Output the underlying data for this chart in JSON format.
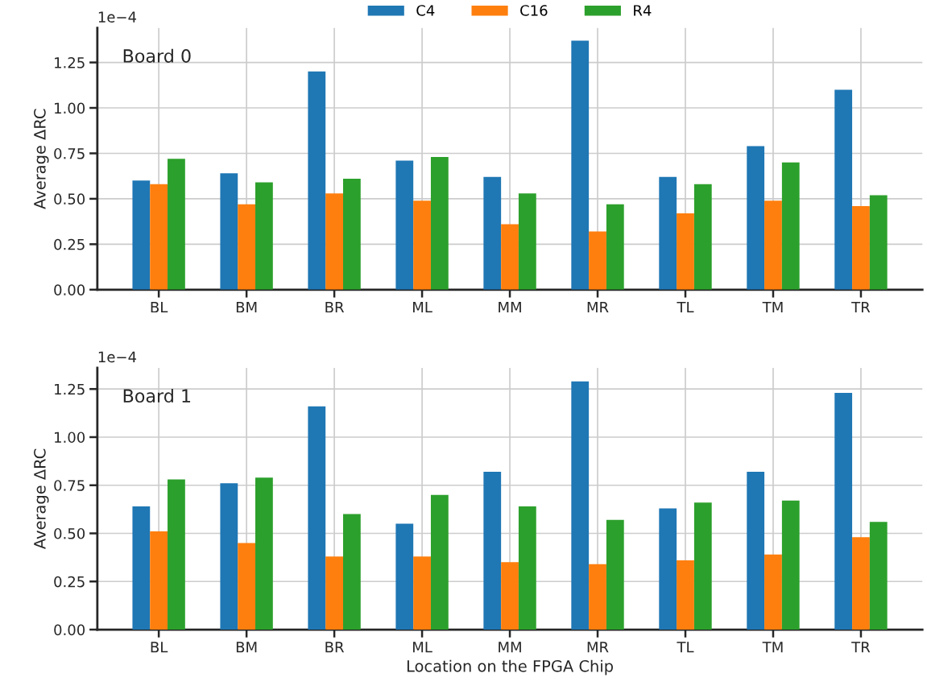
{
  "chart_data": [
    {
      "type": "bar",
      "ylabel": "Average ΔRC",
      "annotations": [
        "Board 0",
        "1e−4"
      ],
      "legend": "top",
      "grid": true,
      "categories": [
        "BL",
        "BM",
        "BR",
        "ML",
        "MM",
        "MR",
        "TL",
        "TM",
        "TR"
      ],
      "ylim": [
        0,
        1.44
      ],
      "yticks": [
        {
          "value": 0,
          "label": "0.00"
        },
        {
          "value": 0.25,
          "label": "0.25"
        },
        {
          "value": 0.5,
          "label": "0.50"
        },
        {
          "value": 0.75,
          "label": "0.75"
        },
        {
          "value": 1.0,
          "label": "1.00"
        },
        {
          "value": 1.25,
          "label": "1.25"
        }
      ],
      "series": [
        {
          "name": "C4",
          "color": "#1f77b4",
          "values": [
            0.6,
            0.64,
            1.2,
            0.71,
            0.62,
            1.37,
            0.62,
            0.79,
            1.1
          ]
        },
        {
          "name": "C16",
          "color": "#ff7f0e",
          "values": [
            0.58,
            0.47,
            0.53,
            0.49,
            0.36,
            0.32,
            0.42,
            0.49,
            0.46
          ]
        },
        {
          "name": "R4",
          "color": "#2ca02c",
          "values": [
            0.72,
            0.59,
            0.61,
            0.73,
            0.53,
            0.47,
            0.58,
            0.7,
            0.52
          ]
        }
      ]
    },
    {
      "type": "bar",
      "ylabel": "Average ΔRC",
      "xlabel": "Location on the FPGA Chip",
      "annotations": [
        "Board 1",
        "1e−4"
      ],
      "grid": true,
      "categories": [
        "BL",
        "BM",
        "BR",
        "ML",
        "MM",
        "MR",
        "TL",
        "TM",
        "TR"
      ],
      "ylim": [
        0,
        1.36
      ],
      "yticks": [
        {
          "value": 0,
          "label": "0.00"
        },
        {
          "value": 0.25,
          "label": "0.25"
        },
        {
          "value": 0.5,
          "label": "0.50"
        },
        {
          "value": 0.75,
          "label": "0.75"
        },
        {
          "value": 1.0,
          "label": "1.00"
        },
        {
          "value": 1.25,
          "label": "1.25"
        }
      ],
      "series": [
        {
          "color": "#1f77b4",
          "values": [
            0.64,
            0.76,
            1.16,
            0.55,
            0.82,
            1.29,
            0.63,
            0.82,
            1.23
          ]
        },
        {
          "color": "#ff7f0e",
          "values": [
            0.51,
            0.45,
            0.38,
            0.38,
            0.35,
            0.34,
            0.36,
            0.39,
            0.48
          ]
        },
        {
          "color": "#2ca02c",
          "values": [
            0.78,
            0.79,
            0.6,
            0.7,
            0.64,
            0.57,
            0.66,
            0.67,
            0.56
          ]
        }
      ]
    }
  ]
}
